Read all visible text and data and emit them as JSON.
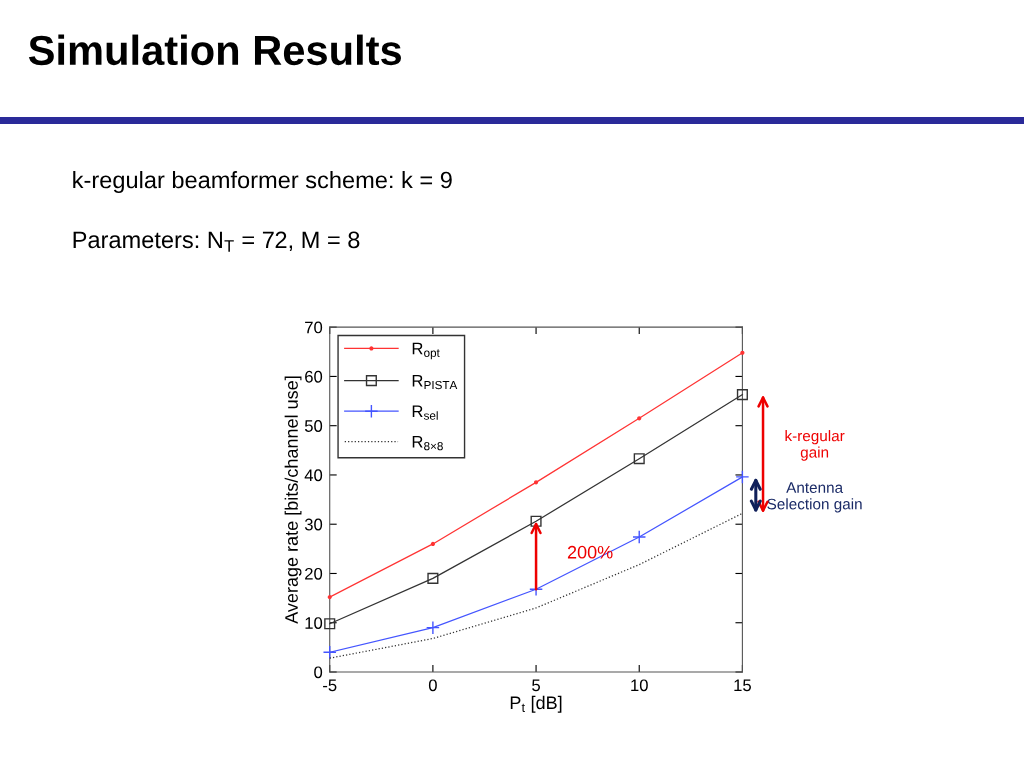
{
  "chart_data": {
    "type": "line",
    "title": "Simulation Results",
    "xlabel": "P$_{t}$ [dB]",
    "ylabel": "Average rate [bits/channel use]",
    "x": [
      -5,
      0,
      5,
      10,
      15
    ],
    "series": [
      {
        "name": "R$_{opt}$",
        "color": "#ff3333",
        "marker": "circle",
        "line_style": "solid",
        "values": [
          15.2,
          26,
          38.5,
          51.5,
          64.8
        ]
      },
      {
        "name": "R$_{PISTA}$",
        "color": "#333333",
        "marker": "square",
        "line_style": "solid",
        "values": [
          9.8,
          19,
          30.6,
          43.3,
          56.3
        ]
      },
      {
        "name": "R$_{sel}$",
        "color": "#4455ff",
        "marker": "cross",
        "line_style": "solid",
        "values": [
          4,
          9,
          16.8,
          27.4,
          39.6
        ]
      },
      {
        "name": "R$_{8×8}$",
        "color": "#333333",
        "marker": "none",
        "line_style": "dotted",
        "values": [
          2.8,
          6.8,
          13,
          21.8,
          32.2
        ]
      }
    ],
    "xlim": [
      -5,
      15
    ],
    "xticks": [
      -5,
      0,
      5,
      10,
      15
    ],
    "ylim": [
      0,
      70
    ],
    "yticks": [
      0,
      10,
      20,
      30,
      40,
      50,
      60,
      70
    ],
    "grid": false,
    "legend": "top left",
    "annotations": [
      "k-regular beamformer scheme: k = 9",
      "Parameters: N$_{T}$ = 72, M = 8",
      "200%",
      "k-regular\ngain",
      "Antenna\nSelection gain"
    ]
  }
}
